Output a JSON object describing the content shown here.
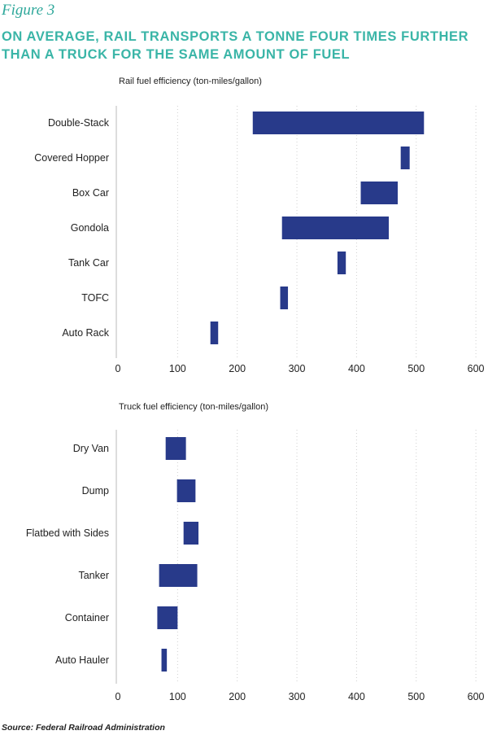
{
  "figure_label": "Figure 3",
  "headline": [
    "ON AVERAGE, RAIL TRANSPORTS A TONNE FOUR TIMES FURTHER",
    "THAN A TRUCK FOR THE SAME AMOUNT OF FUEL"
  ],
  "source": "Source: Federal Railroad Administration",
  "colors": {
    "bar": "#283a8a",
    "headline": "#3ab5a7",
    "grid": "#cfcfcf"
  },
  "chart_data": [
    {
      "type": "bar",
      "orientation": "horizontal-range",
      "title": "Rail fuel efficiency (ton-miles/gallon)",
      "categories": [
        "Double-Stack",
        "Covered Hopper",
        "Box Car",
        "Gondola",
        "Tank Car",
        "TOFC",
        "Auto Rack"
      ],
      "ranges": [
        [
          226,
          513
        ],
        [
          474,
          489
        ],
        [
          407,
          469
        ],
        [
          275,
          454
        ],
        [
          368,
          382
        ],
        [
          272,
          285
        ],
        [
          155,
          168
        ]
      ],
      "xlim": [
        0,
        600
      ],
      "xticks": [
        "0",
        "100",
        "200",
        "300",
        "400",
        "500",
        "600"
      ],
      "grid": true
    },
    {
      "type": "bar",
      "orientation": "horizontal-range",
      "title": "Truck fuel efficiency (ton-miles/gallon)",
      "categories": [
        "Dry Van",
        "Dump",
        "Flatbed with Sides",
        "Tanker",
        "Container",
        "Auto Hauler"
      ],
      "ranges": [
        [
          80,
          114
        ],
        [
          99,
          130
        ],
        [
          110,
          135
        ],
        [
          69,
          133
        ],
        [
          66,
          100
        ],
        [
          73,
          82
        ]
      ],
      "xlim": [
        0,
        600
      ],
      "xticks": [
        "0",
        "100",
        "200",
        "300",
        "400",
        "500",
        "600"
      ],
      "grid": true
    }
  ]
}
